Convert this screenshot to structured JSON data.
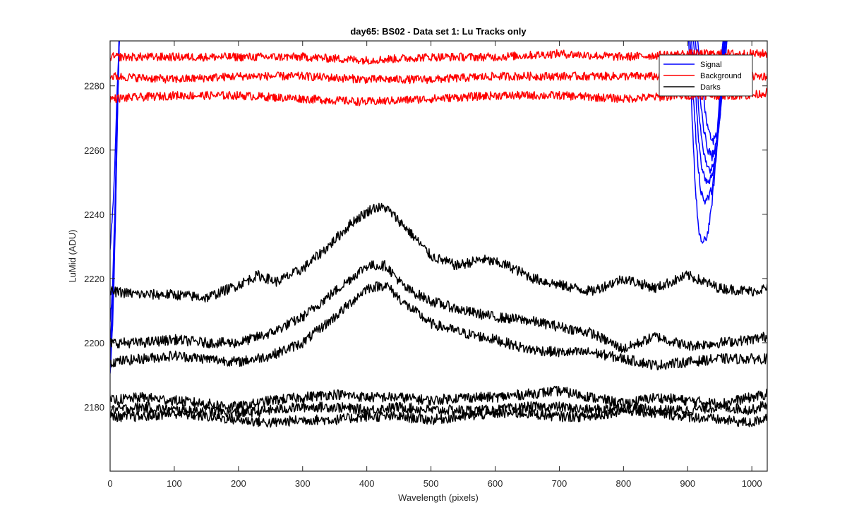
{
  "chart_data": {
    "type": "line",
    "title": "day65: BS02 - Data set 1: Lu Tracks only",
    "xlabel": "Wavelength (pixels)",
    "ylabel": "LuMid (ADU)",
    "xlim": [
      0,
      1024
    ],
    "ylim": [
      2160,
      2294
    ],
    "xticks": [
      0,
      100,
      200,
      300,
      400,
      500,
      600,
      700,
      800,
      900,
      1000
    ],
    "yticks": [
      2180,
      2200,
      2220,
      2240,
      2260,
      2280
    ],
    "grid": false,
    "legend_position": "top-right",
    "legend": [
      {
        "label": "Signal",
        "color": "#0000ff"
      },
      {
        "label": "Background",
        "color": "#ff0000"
      },
      {
        "label": "Darks",
        "color": "#000000"
      }
    ],
    "series_groups": [
      {
        "group": "Signal",
        "color": "#0000ff",
        "series": [
          {
            "x": [
              0,
              4,
              8,
              12,
              15,
              900,
              906,
              912,
              918,
              924,
              930,
              936,
              942,
              948,
              954,
              960,
              1024
            ],
            "y": [
              2190,
              2205,
              2235,
              2275,
              2300,
              2300,
              2275,
              2248,
              2233,
              2231,
              2233,
              2240,
              2252,
              2272,
              2292,
              2300,
              2300
            ]
          },
          {
            "x": [
              0,
              4,
              8,
              12,
              15,
              902,
              908,
              914,
              920,
              926,
              932,
              938,
              944,
              950,
              956,
              962,
              1024
            ],
            "y": [
              2193,
              2208,
              2238,
              2276,
              2300,
              2300,
              2280,
              2260,
              2248,
              2244,
              2245,
              2248,
              2256,
              2274,
              2294,
              2300,
              2300
            ]
          },
          {
            "x": [
              0,
              4,
              8,
              12,
              15,
              904,
              910,
              916,
              922,
              928,
              934,
              940,
              946,
              952,
              958,
              964,
              1024
            ],
            "y": [
              2196,
              2210,
              2240,
              2277,
              2300,
              2300,
              2284,
              2266,
              2254,
              2250,
              2250,
              2253,
              2262,
              2278,
              2296,
              2300,
              2300
            ]
          },
          {
            "x": [
              0,
              4,
              8,
              12,
              15,
              906,
              912,
              918,
              924,
              930,
              936,
              942,
              948,
              954,
              960,
              966,
              1024
            ],
            "y": [
              2200,
              2213,
              2242,
              2278,
              2300,
              2300,
              2287,
              2271,
              2259,
              2255,
              2254,
              2257,
              2266,
              2281,
              2297,
              2300,
              2300
            ]
          },
          {
            "x": [
              0,
              4,
              8,
              12,
              15,
              908,
              914,
              920,
              926,
              932,
              938,
              944,
              950,
              956,
              962,
              968,
              1024
            ],
            "y": [
              2207,
              2218,
              2245,
              2280,
              2300,
              2300,
              2290,
              2276,
              2265,
              2260,
              2258,
              2261,
              2270,
              2284,
              2298,
              2300,
              2300
            ]
          },
          {
            "x": [
              0,
              4,
              8,
              12,
              15,
              910,
              916,
              922,
              928,
              934,
              940,
              946,
              952,
              958,
              964,
              970,
              1024
            ],
            "y": [
              2230,
              2240,
              2260,
              2284,
              2300,
              2300,
              2294,
              2282,
              2271,
              2265,
              2263,
              2265,
              2273,
              2287,
              2299,
              2300,
              2300
            ]
          }
        ]
      },
      {
        "group": "Background",
        "color": "#ff0000",
        "series": [
          {
            "x": [
              0,
              100,
              200,
              300,
              400,
              500,
              600,
              700,
              800,
              900,
              1000,
              1024
            ],
            "y": [
              2289,
              2289,
              2289,
              2289,
              2288,
              2289,
              2289,
              2290,
              2289,
              2290,
              2290,
              2290
            ]
          },
          {
            "x": [
              0,
              100,
              200,
              300,
              400,
              500,
              600,
              700,
              800,
              900,
              1000,
              1024
            ],
            "y": [
              2283,
              2282,
              2283,
              2283,
              2282,
              2282,
              2283,
              2283,
              2283,
              2283,
              2283,
              2283
            ]
          },
          {
            "x": [
              0,
              100,
              200,
              300,
              400,
              500,
              600,
              700,
              800,
              900,
              1000,
              1024
            ],
            "y": [
              2276,
              2277,
              2277,
              2276,
              2275,
              2276,
              2277,
              2277,
              2276,
              2277,
              2277,
              2278
            ]
          }
        ]
      },
      {
        "group": "Darks",
        "color": "#000000",
        "series": [
          {
            "x": [
              0,
              50,
              100,
              150,
              200,
              230,
              260,
              300,
              340,
              380,
              410,
              430,
              460,
              500,
              540,
              580,
              620,
              660,
              700,
              750,
              800,
              850,
              900,
              950,
              1000,
              1024
            ],
            "y": [
              2216,
              2215,
              2215,
              2214,
              2218,
              2221,
              2219,
              2223,
              2230,
              2238,
              2242,
              2242,
              2236,
              2227,
              2224,
              2226,
              2224,
              2220,
              2218,
              2216,
              2220,
              2217,
              2221,
              2217,
              2216,
              2217
            ]
          },
          {
            "x": [
              0,
              50,
              100,
              150,
              200,
              250,
              300,
              350,
              400,
              430,
              460,
              500,
              550,
              600,
              650,
              700,
              750,
              800,
              850,
              900,
              950,
              1000,
              1024
            ],
            "y": [
              2200,
              2200,
              2201,
              2200,
              2200,
              2203,
              2208,
              2216,
              2224,
              2224,
              2217,
              2213,
              2210,
              2208,
              2207,
              2205,
              2203,
              2198,
              2202,
              2199,
              2200,
              2201,
              2202
            ]
          },
          {
            "x": [
              0,
              50,
              100,
              150,
              200,
              250,
              300,
              350,
              400,
              430,
              460,
              500,
              550,
              600,
              650,
              700,
              750,
              800,
              850,
              900,
              950,
              1000,
              1024
            ],
            "y": [
              2194,
              2195,
              2196,
              2195,
              2194,
              2196,
              2200,
              2208,
              2217,
              2218,
              2212,
              2206,
              2203,
              2201,
              2198,
              2197,
              2197,
              2195,
              2193,
              2194,
              2195,
              2195,
              2195
            ]
          },
          {
            "x": [
              0,
              50,
              100,
              150,
              200,
              250,
              300,
              350,
              400,
              450,
              500,
              550,
              600,
              650,
              700,
              750,
              800,
              850,
              900,
              950,
              1000,
              1024
            ],
            "y": [
              2182,
              2183,
              2182,
              2181,
              2180,
              2182,
              2183,
              2184,
              2183,
              2183,
              2182,
              2183,
              2183,
              2184,
              2185,
              2183,
              2181,
              2183,
              2182,
              2181,
              2183,
              2184
            ]
          },
          {
            "x": [
              0,
              50,
              100,
              150,
              200,
              250,
              300,
              350,
              400,
              450,
              500,
              550,
              600,
              650,
              700,
              750,
              800,
              850,
              900,
              950,
              1000,
              1024
            ],
            "y": [
              2179,
              2180,
              2179,
              2179,
              2178,
              2179,
              2180,
              2180,
              2179,
              2180,
              2179,
              2179,
              2179,
              2180,
              2180,
              2179,
              2180,
              2179,
              2179,
              2180,
              2179,
              2181
            ]
          },
          {
            "x": [
              0,
              50,
              100,
              150,
              200,
              250,
              300,
              350,
              400,
              450,
              500,
              550,
              600,
              650,
              700,
              750,
              800,
              850,
              900,
              950,
              1000,
              1024
            ],
            "y": [
              2177,
              2177,
              2178,
              2177,
              2176,
              2175,
              2176,
              2176,
              2177,
              2177,
              2176,
              2177,
              2178,
              2178,
              2177,
              2177,
              2179,
              2178,
              2177,
              2176,
              2175,
              2177
            ]
          }
        ]
      }
    ]
  }
}
